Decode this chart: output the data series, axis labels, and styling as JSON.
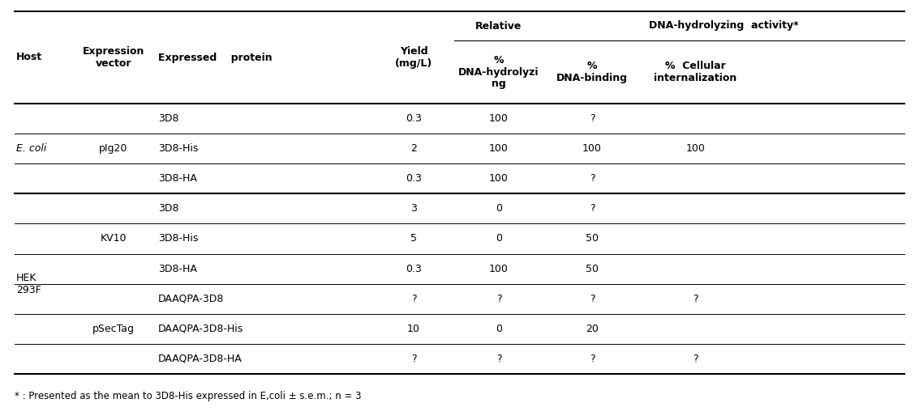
{
  "footnote": "* : Presented as the mean to 3D8-His expressed in E,coli ± s.e.m.; n = 3",
  "rows": [
    {
      "host": "E. coli",
      "vector": "pIg20",
      "protein": "3D8",
      "yield": "0.3",
      "hydro": "100",
      "bind": "?",
      "intern": ""
    },
    {
      "host": "",
      "vector": "",
      "protein": "3D8-His",
      "yield": "2",
      "hydro": "100",
      "bind": "100",
      "intern": "100"
    },
    {
      "host": "",
      "vector": "",
      "protein": "3D8-HA",
      "yield": "0.3",
      "hydro": "100",
      "bind": "?",
      "intern": ""
    },
    {
      "host": "HEK\n293F",
      "vector": "KV10",
      "protein": "3D8",
      "yield": "3",
      "hydro": "0",
      "bind": "?",
      "intern": ""
    },
    {
      "host": "",
      "vector": "",
      "protein": "3D8-His",
      "yield": "5",
      "hydro": "0",
      "bind": "50",
      "intern": ""
    },
    {
      "host": "",
      "vector": "",
      "protein": "3D8-HA",
      "yield": "0.3",
      "hydro": "100",
      "bind": "50",
      "intern": ""
    },
    {
      "host": "",
      "vector": "pSecTag",
      "protein": "DAAQPA-3D8",
      "yield": "?",
      "hydro": "?",
      "bind": "?",
      "intern": "?"
    },
    {
      "host": "",
      "vector": "",
      "protein": "DAAQPA-3D8-His",
      "yield": "10",
      "hydro": "0",
      "bind": "20",
      "intern": ""
    },
    {
      "host": "",
      "vector": "",
      "protein": "DAAQPA-3D8-HA",
      "yield": "?",
      "hydro": "?",
      "bind": "?",
      "intern": "?"
    }
  ],
  "bg_color": "#ffffff",
  "text_color": "#000000",
  "font_size": 9.0,
  "header_font_size": 9.0
}
